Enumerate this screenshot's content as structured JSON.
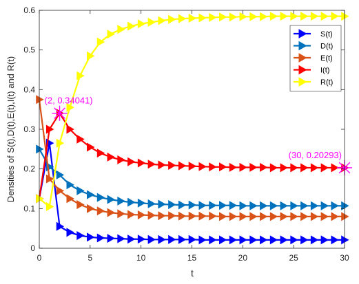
{
  "chart_data": {
    "type": "line",
    "xlabel": "t",
    "ylabel": "Densities of S(t),D(t),E(t),I(t) and R(t)",
    "xlim": [
      0,
      30
    ],
    "ylim": [
      0,
      0.6
    ],
    "xticks": [
      0,
      5,
      10,
      15,
      20,
      25,
      30
    ],
    "yticks": [
      0,
      0.1,
      0.2,
      0.3,
      0.4,
      0.5,
      0.6
    ],
    "xtick_labels": [
      "0",
      "5",
      "10",
      "15",
      "20",
      "25",
      "30"
    ],
    "ytick_labels": [
      "0",
      "0.1",
      "0.2",
      "0.3",
      "0.4",
      "0.5",
      "0.6"
    ],
    "grid": false,
    "legend_position": "top-right",
    "x": [
      0,
      1,
      2,
      3,
      4,
      5,
      6,
      7,
      8,
      9,
      10,
      11,
      12,
      13,
      14,
      15,
      16,
      17,
      18,
      19,
      20,
      21,
      22,
      23,
      24,
      25,
      26,
      27,
      28,
      29,
      30
    ],
    "series": [
      {
        "name": "S(t)",
        "color": "#0000ff",
        "values": [
          0.125,
          0.265,
          0.055,
          0.04,
          0.032,
          0.028,
          0.026,
          0.025,
          0.024,
          0.023,
          0.023,
          0.022,
          0.022,
          0.022,
          0.022,
          0.022,
          0.021,
          0.021,
          0.021,
          0.021,
          0.021,
          0.021,
          0.021,
          0.021,
          0.021,
          0.021,
          0.021,
          0.021,
          0.021,
          0.021,
          0.021
        ]
      },
      {
        "name": "D(t)",
        "color": "#0072bd",
        "values": [
          0.25,
          0.205,
          0.185,
          0.16,
          0.145,
          0.135,
          0.128,
          0.123,
          0.119,
          0.116,
          0.114,
          0.112,
          0.111,
          0.11,
          0.109,
          0.109,
          0.108,
          0.108,
          0.108,
          0.108,
          0.107,
          0.107,
          0.107,
          0.107,
          0.107,
          0.107,
          0.107,
          0.107,
          0.107,
          0.107,
          0.107
        ]
      },
      {
        "name": "E(t)",
        "color": "#d95319",
        "values": [
          0.375,
          0.175,
          0.145,
          0.125,
          0.11,
          0.1,
          0.094,
          0.09,
          0.087,
          0.085,
          0.084,
          0.083,
          0.082,
          0.082,
          0.081,
          0.081,
          0.081,
          0.081,
          0.08,
          0.08,
          0.08,
          0.08,
          0.08,
          0.08,
          0.08,
          0.08,
          0.08,
          0.08,
          0.08,
          0.08,
          0.08
        ]
      },
      {
        "name": "I(t)",
        "color": "#ff0000",
        "values": [
          0.125,
          0.3,
          0.34041,
          0.3,
          0.275,
          0.255,
          0.24,
          0.23,
          0.223,
          0.218,
          0.215,
          0.212,
          0.21,
          0.209,
          0.208,
          0.207,
          0.206,
          0.205,
          0.205,
          0.204,
          0.204,
          0.204,
          0.204,
          0.203,
          0.203,
          0.203,
          0.203,
          0.203,
          0.203,
          0.203,
          0.20293
        ]
      },
      {
        "name": "R(t)",
        "color": "#ffff00",
        "values": [
          0.125,
          0.105,
          0.265,
          0.355,
          0.435,
          0.485,
          0.52,
          0.54,
          0.552,
          0.56,
          0.566,
          0.57,
          0.574,
          0.577,
          0.579,
          0.58,
          0.581,
          0.582,
          0.583,
          0.583,
          0.584,
          0.584,
          0.584,
          0.585,
          0.585,
          0.585,
          0.585,
          0.585,
          0.585,
          0.585,
          0.585
        ]
      }
    ],
    "annotations": [
      {
        "x": 2,
        "y": 0.34041,
        "text": "(2, 0.34041)",
        "color": "#ff00ff"
      },
      {
        "x": 30,
        "y": 0.20293,
        "text": "(30, 0.20293)",
        "color": "#ff00ff"
      }
    ]
  }
}
